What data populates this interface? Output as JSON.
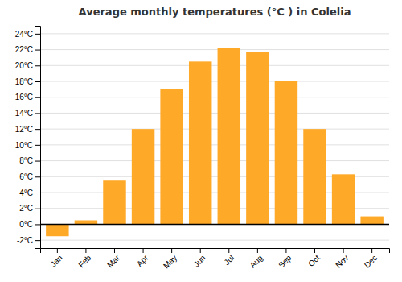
{
  "chart_data": {
    "type": "bar",
    "title": "Average monthly temperatures (°C ) in Colelia",
    "categories": [
      "Jan",
      "Feb",
      "Mar",
      "Apr",
      "May",
      "Jun",
      "Jul",
      "Aug",
      "Sep",
      "Oct",
      "Nov",
      "Dec"
    ],
    "values": [
      -1.5,
      0.5,
      5.5,
      12.0,
      17.0,
      20.5,
      22.2,
      21.7,
      18.0,
      12.0,
      6.3,
      1.0
    ],
    "color": "#FFA928",
    "ylim": [
      -3,
      25
    ],
    "yticks": [
      {
        "value": -2,
        "label": "-2°C"
      },
      {
        "value": 0,
        "label": "0°C"
      },
      {
        "value": 2,
        "label": "2°C"
      },
      {
        "value": 4,
        "label": "4°C"
      },
      {
        "value": 6,
        "label": "6°C"
      },
      {
        "value": 8,
        "label": "8°C"
      },
      {
        "value": 10,
        "label": "10°C"
      },
      {
        "value": 12,
        "label": "12°C"
      },
      {
        "value": 14,
        "label": "14°C"
      },
      {
        "value": 16,
        "label": "16°C"
      },
      {
        "value": 18,
        "label": "18°C"
      },
      {
        "value": 20,
        "label": "20°C"
      },
      {
        "value": 22,
        "label": "22°C"
      },
      {
        "value": 24,
        "label": "24°C"
      }
    ],
    "grid": true
  }
}
